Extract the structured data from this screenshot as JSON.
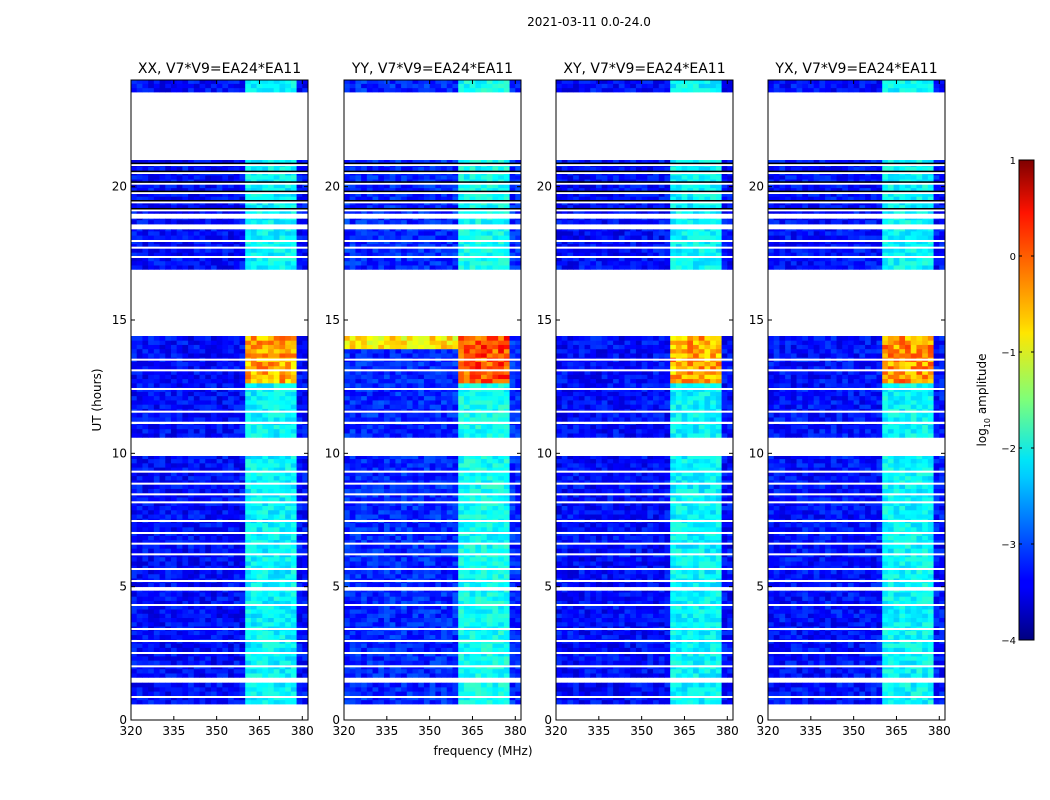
{
  "chart_data": {
    "type": "heatmap",
    "suptitle": "2021-03-11 0.0-24.0",
    "xlabel": "frequency (MHz)",
    "ylabel": "UT (hours)",
    "xlim": [
      320,
      382
    ],
    "ylim": [
      0,
      24
    ],
    "xticks": [
      320,
      335,
      350,
      365,
      380
    ],
    "yticks": [
      0,
      5,
      10,
      15,
      20
    ],
    "panels": [
      {
        "title": "XX, V7*V9=EA24*EA11",
        "boost": 0.0
      },
      {
        "title": "YY, V7*V9=EA24*EA11",
        "boost": 0.45
      },
      {
        "title": "XY, V7*V9=EA24*EA11",
        "boost": 0.0
      },
      {
        "title": "YX, V7*V9=EA24*EA11",
        "boost": 0.1
      }
    ],
    "rfi_channels_mhz": [
      [
        360.0,
        363.0
      ],
      [
        363.5,
        366.5
      ],
      [
        367.0,
        370.5
      ],
      [
        371.0,
        374.5
      ],
      [
        375.0,
        377.5
      ]
    ],
    "data_blocks_ut": [
      [
        0.6,
        1.4
      ],
      [
        1.6,
        4.85
      ],
      [
        5.0,
        9.9
      ],
      [
        10.6,
        11.1
      ],
      [
        11.2,
        14.4
      ],
      [
        16.9,
        18.4
      ],
      [
        18.6,
        18.8
      ],
      [
        19.0,
        21.0
      ],
      [
        23.55,
        24.0
      ]
    ],
    "flagged_blocks_ut": [
      [
        14.4,
        16.9
      ],
      [
        21.0,
        23.55
      ],
      [
        9.9,
        10.6
      ],
      [
        0.0,
        0.6
      ]
    ],
    "strong_rfi_ut": [
      12.5,
      14.4
    ],
    "colorbar": {
      "label": "log10 amplitude",
      "label_main": "log",
      "label_sub": "10",
      "label_tail": " amplitude",
      "vmin": -4,
      "vmax": 1,
      "ticks": [
        -4,
        -3,
        -2,
        -1,
        0,
        1
      ],
      "tick_labels": [
        "−4",
        "−3",
        "−2",
        "−1",
        "0",
        "1"
      ],
      "colormap": "jet"
    }
  }
}
